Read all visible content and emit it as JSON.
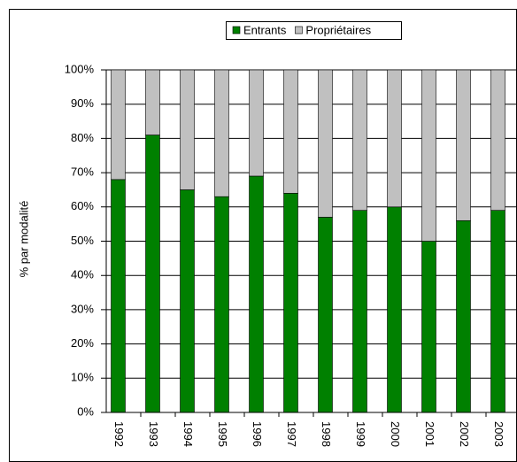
{
  "chart_data": {
    "type": "stacked_bar",
    "y_label": "% par modalité",
    "categories": [
      "1992",
      "1993",
      "1994",
      "1995",
      "1996",
      "1997",
      "1998",
      "1999",
      "2000",
      "2001",
      "2002",
      "2003"
    ],
    "series": [
      {
        "name": "Entrants",
        "color": "#008000",
        "values": [
          68,
          81,
          65,
          63,
          69,
          64,
          57,
          59,
          60,
          50,
          56,
          59
        ]
      },
      {
        "name": "Propriétaires",
        "color": "#c0c0c0",
        "values": [
          32,
          19,
          35,
          37,
          31,
          36,
          43,
          41,
          40,
          50,
          44,
          41
        ]
      }
    ],
    "ylim": [
      0,
      100
    ],
    "yticks": [
      {
        "value": 0,
        "label": "0%"
      },
      {
        "value": 10,
        "label": "10%"
      },
      {
        "value": 20,
        "label": "20%"
      },
      {
        "value": 30,
        "label": "30%"
      },
      {
        "value": 40,
        "label": "40%"
      },
      {
        "value": 50,
        "label": "50%"
      },
      {
        "value": 60,
        "label": "60%"
      },
      {
        "value": 70,
        "label": "70%"
      },
      {
        "value": 80,
        "label": "80%"
      },
      {
        "value": 90,
        "label": "90%"
      },
      {
        "value": 100,
        "label": "100%"
      }
    ],
    "grid": true,
    "legend": "top"
  }
}
